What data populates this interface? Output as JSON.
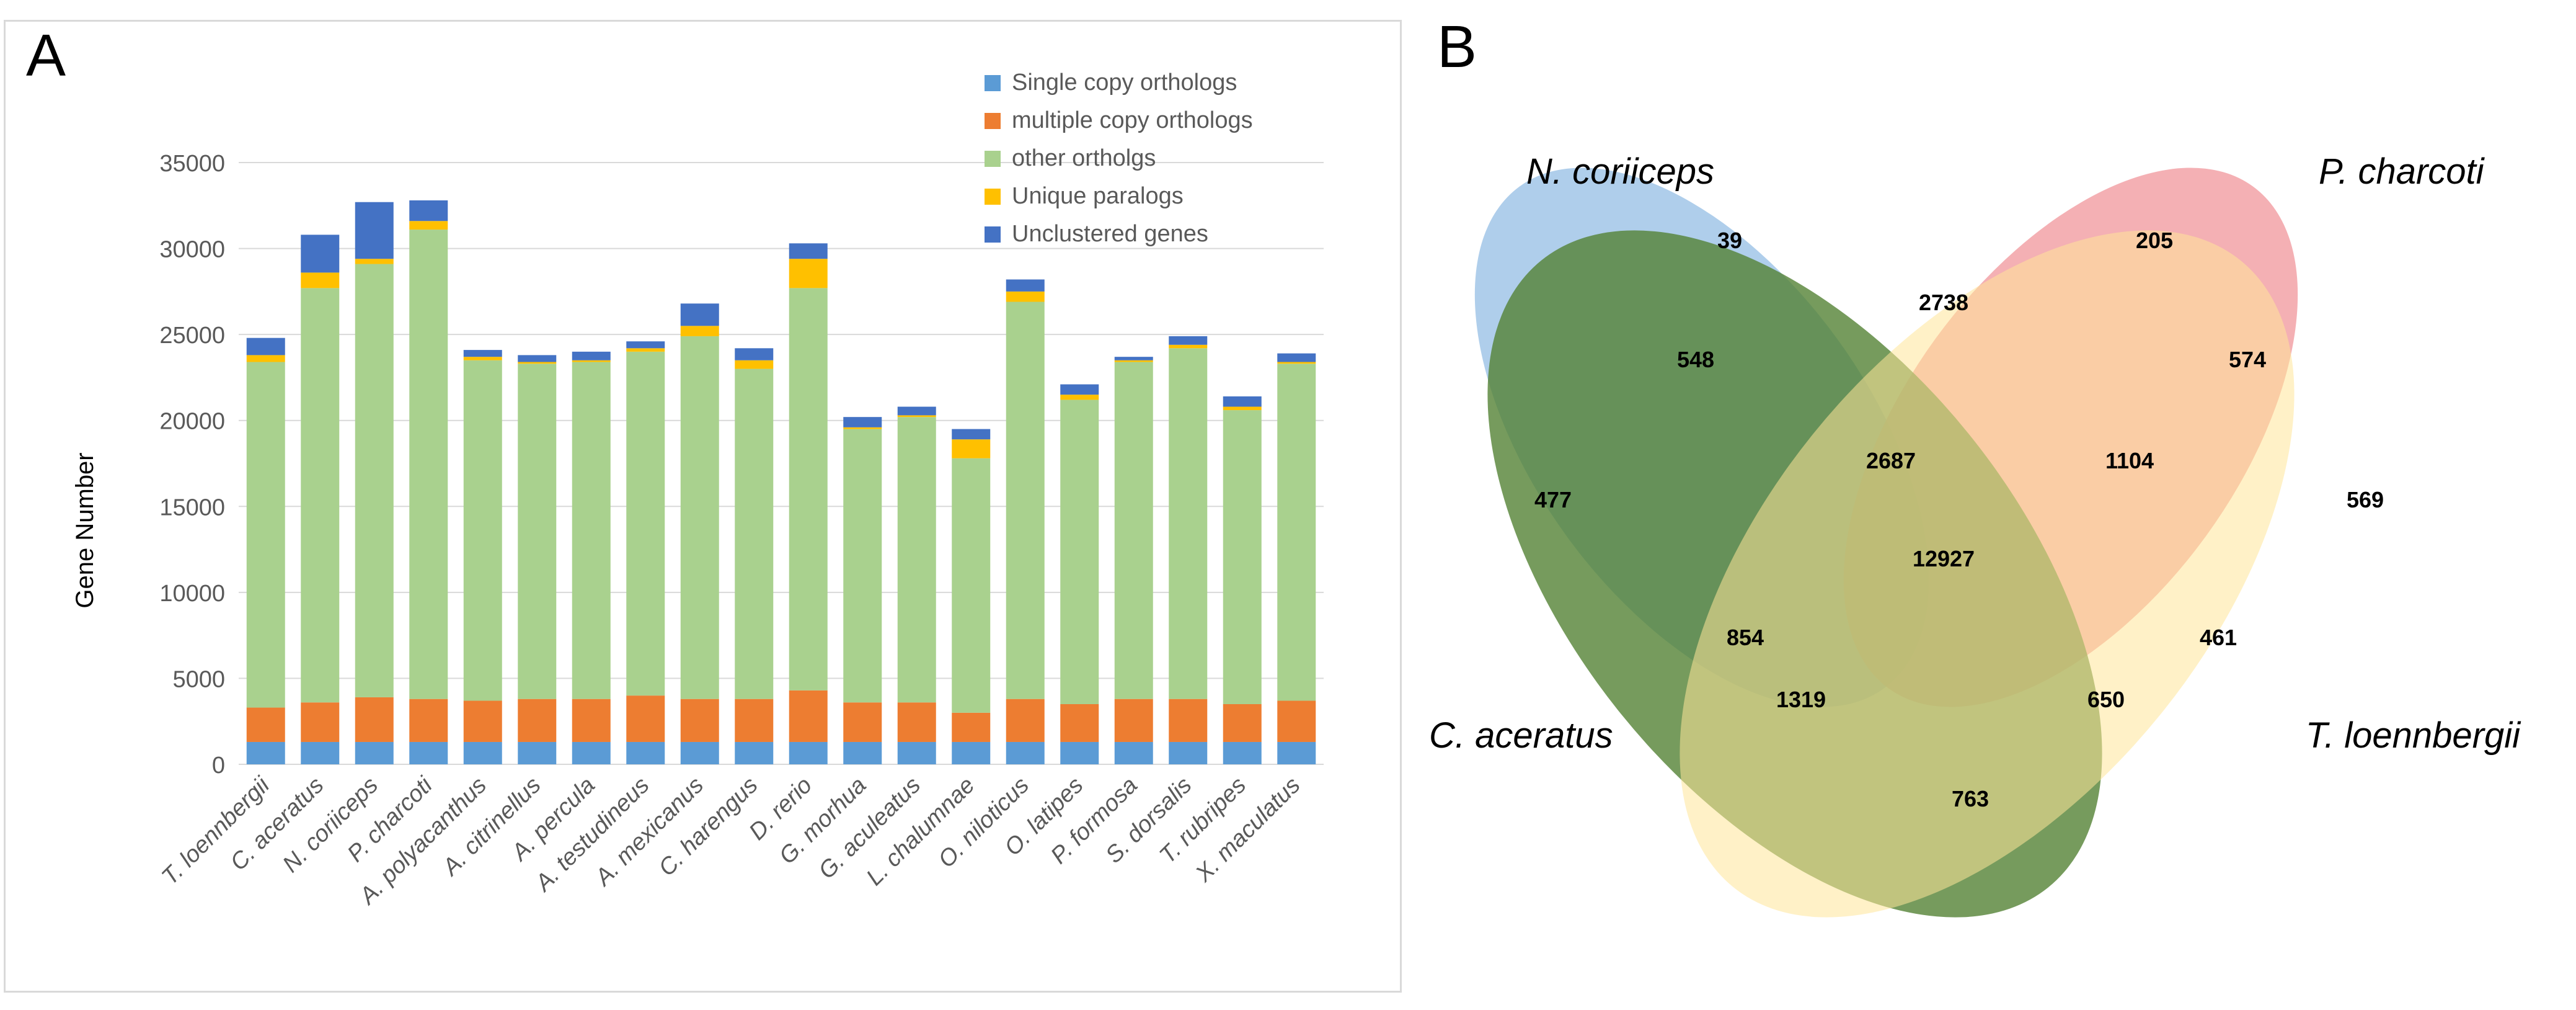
{
  "panel_a": {
    "label": "A"
  },
  "panel_b": {
    "label": "B"
  },
  "chart_data": [
    {
      "type": "bar",
      "stacked": true,
      "title": "",
      "xlabel": "",
      "ylabel": "Gene Number",
      "ylim": [
        0,
        35000
      ],
      "yticks": [
        "0",
        "5000",
        "10000",
        "15000",
        "20000",
        "25000",
        "30000",
        "35000"
      ],
      "grid": true,
      "legend_position": "top-right",
      "categories": [
        "T. loennbergii",
        "C. aceratus",
        "N. coriiceps",
        "P. charcoti",
        "A. polyacanthus",
        "A. citrinellus",
        "A. percula",
        "A. testudineus",
        "A. mexicanus",
        "C. harengus",
        "D. rerio",
        "G. morhua",
        "G. aculeatus",
        "L. chalumnae",
        "O. niloticus",
        "O. latipes",
        "P. formosa",
        "S. dorsalis",
        "T. rubripes",
        "X. maculatus"
      ],
      "series": [
        {
          "name": "Single copy orthologs",
          "color": "#5b9bd5",
          "values": [
            1300,
            1300,
            1300,
            1300,
            1300,
            1300,
            1300,
            1300,
            1300,
            1300,
            1300,
            1300,
            1300,
            1300,
            1300,
            1300,
            1300,
            1300,
            1300,
            1300
          ]
        },
        {
          "name": "multiple copy orthologs",
          "color": "#ed7d31",
          "values": [
            2000,
            2300,
            2600,
            2500,
            2400,
            2500,
            2500,
            2700,
            2500,
            2500,
            3000,
            2300,
            2300,
            1700,
            2500,
            2200,
            2500,
            2500,
            2200,
            2400
          ]
        },
        {
          "name": "other ortholgs",
          "color": "#a9d18e",
          "values": [
            20100,
            24100,
            25200,
            27300,
            19800,
            19500,
            19600,
            20000,
            21100,
            19200,
            23400,
            15900,
            16600,
            14800,
            23100,
            17700,
            19600,
            20400,
            17100,
            19600
          ]
        },
        {
          "name": "Unique paralogs",
          "color": "#ffc000",
          "values": [
            400,
            900,
            300,
            500,
            200,
            100,
            100,
            200,
            600,
            500,
            1700,
            100,
            100,
            1100,
            600,
            300,
            100,
            200,
            200,
            100
          ]
        },
        {
          "name": "Unclustered genes",
          "color": "#4472c4",
          "values": [
            1000,
            2200,
            3300,
            1200,
            400,
            400,
            500,
            400,
            1300,
            700,
            900,
            600,
            500,
            600,
            700,
            600,
            200,
            500,
            600,
            500
          ]
        }
      ]
    },
    {
      "type": "venn",
      "title": "",
      "sets": [
        {
          "name": "N. coriiceps",
          "color": "#9dc3e6"
        },
        {
          "name": "P. charcoti",
          "color": "#f19a9f"
        },
        {
          "name": "C. aceratus",
          "color": "#548235"
        },
        {
          "name": "T. loennbergii",
          "color": "#ffe699"
        }
      ],
      "regions": [
        {
          "sets": [
            "N. coriiceps"
          ],
          "value": "39"
        },
        {
          "sets": [
            "P. charcoti"
          ],
          "value": "205"
        },
        {
          "sets": [
            "N. coriiceps",
            "P. charcoti"
          ],
          "value": "2738"
        },
        {
          "sets": [
            "N. coriiceps",
            "C. aceratus"
          ],
          "value": "548"
        },
        {
          "sets": [
            "P. charcoti",
            "T. loennbergii"
          ],
          "value": "574"
        },
        {
          "sets": [
            "N. coriiceps",
            "P. charcoti",
            "C. aceratus"
          ],
          "value": "2687"
        },
        {
          "sets": [
            "N. coriiceps",
            "P. charcoti",
            "T. loennbergii"
          ],
          "value": "1104"
        },
        {
          "sets": [
            "C. aceratus"
          ],
          "value": "477"
        },
        {
          "sets": [
            "T. loennbergii"
          ],
          "value": "569"
        },
        {
          "sets": [
            "N. coriiceps",
            "P. charcoti",
            "C. aceratus",
            "T. loennbergii"
          ],
          "value": "12927"
        },
        {
          "sets": [
            "P. charcoti",
            "C. aceratus"
          ],
          "value": "854"
        },
        {
          "sets": [
            "N. coriiceps",
            "T. loennbergii"
          ],
          "value": "461"
        },
        {
          "sets": [
            "P. charcoti",
            "C. aceratus",
            "T. loennbergii"
          ],
          "value": "1319"
        },
        {
          "sets": [
            "N. coriiceps",
            "C. aceratus",
            "T. loennbergii"
          ],
          "value": "650"
        },
        {
          "sets": [
            "C. aceratus",
            "T. loennbergii"
          ],
          "value": "763"
        }
      ]
    }
  ]
}
